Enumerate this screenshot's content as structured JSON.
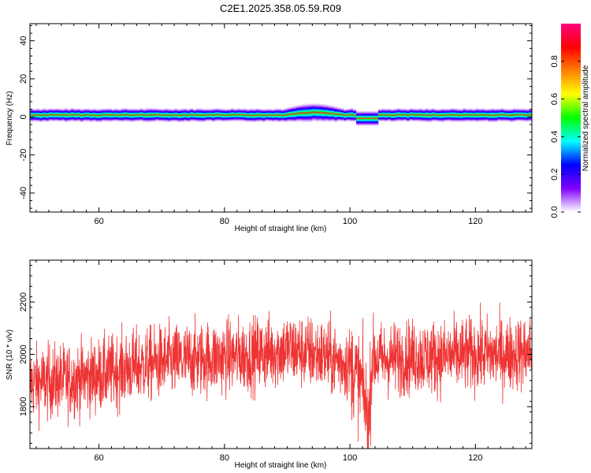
{
  "title": "C2E1.2025.358.05.59.R09",
  "chart_data": [
    {
      "type": "heatmap",
      "title": "C2E1.2025.358.05.59.R09",
      "xlabel": "Height of straight line (km)",
      "ylabel": "Frequency (Hz)",
      "xlim": [
        49,
        129
      ],
      "ylim": [
        -50,
        49
      ],
      "xticks": [
        "60",
        "80",
        "100",
        "120"
      ],
      "xtick_values": [
        60,
        80,
        100,
        120
      ],
      "yticks": [
        "40",
        "20",
        "0",
        "-20",
        "-40"
      ],
      "ytick_values": [
        40,
        20,
        0,
        -20,
        -40
      ],
      "band_center_hz": 1,
      "band_halfwidth_hz": 2,
      "features": [
        {
          "x_from": 89,
          "x_to": 99,
          "note": "band widened upward to ~5 Hz"
        },
        {
          "x_from": 101,
          "x_to": 104,
          "note": "band dips to ~-1 Hz"
        }
      ],
      "colorbar": {
        "label": "Normalized spectral amplitude",
        "ticks": [
          "0.0",
          "0.2",
          "0.4",
          "0.6",
          "0.8"
        ],
        "tick_values": [
          0.0,
          0.2,
          0.4,
          0.6,
          0.8
        ],
        "range": [
          0.0,
          1.0
        ],
        "colormap": [
          "#ffffff",
          "#8000ff",
          "#0000ff",
          "#00ffff",
          "#00ff00",
          "#ffff00",
          "#ff8000",
          "#ff0000",
          "#ff0080"
        ]
      }
    },
    {
      "type": "line",
      "xlabel": "Height of straight line (km)",
      "ylabel": "SNR (10 * v/v)",
      "xlim": [
        49,
        129
      ],
      "ylim": [
        1640,
        2360
      ],
      "xticks": [
        "60",
        "80",
        "100",
        "120"
      ],
      "xtick_values": [
        60,
        80,
        100,
        120
      ],
      "yticks": [
        "2200",
        "2000",
        "1800"
      ],
      "ytick_values": [
        2200,
        2000,
        1800
      ],
      "color": "#ee3333",
      "series": [
        {
          "name": "SNR",
          "x": [
            49,
            55,
            60,
            65,
            70,
            75,
            80,
            85,
            90,
            95,
            100,
            102,
            103,
            103.5,
            105,
            110,
            115,
            120,
            125,
            129
          ],
          "y": [
            1890,
            1900,
            1920,
            1950,
            1970,
            1980,
            1990,
            2000,
            2020,
            2000,
            1960,
            1880,
            1730,
            1990,
            1980,
            1990,
            1990,
            2000,
            2000,
            2010
          ],
          "noise_amplitude": 70
        }
      ]
    }
  ]
}
